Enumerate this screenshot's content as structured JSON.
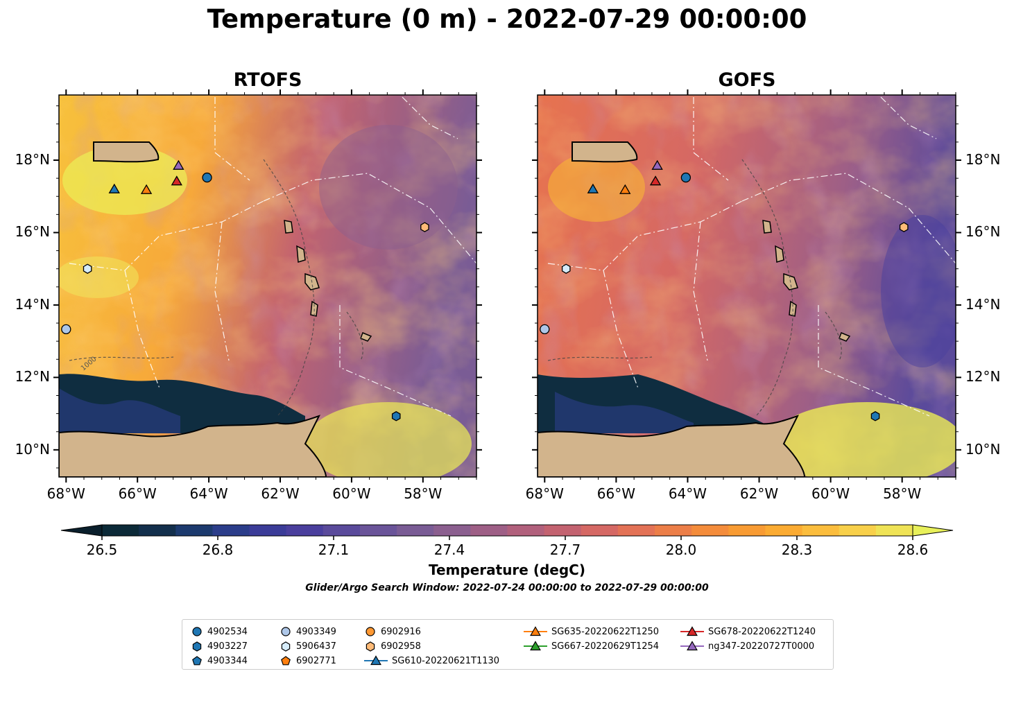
{
  "title": "Temperature (0 m) - 2022-07-29 00:00:00",
  "panels": [
    {
      "title": "RTOFS"
    },
    {
      "title": "GOFS"
    }
  ],
  "lon_ticks": [
    "68°W",
    "66°W",
    "64°W",
    "62°W",
    "60°W",
    "58°W"
  ],
  "lat_ticks": [
    "18°N",
    "16°N",
    "14°N",
    "12°N",
    "10°N"
  ],
  "colorbar": {
    "label": "Temperature (degC)",
    "min": 26.4,
    "max": 28.65,
    "ticks": [
      "26.5",
      "26.8",
      "27.1",
      "27.4",
      "27.7",
      "28.0",
      "28.3",
      "28.6"
    ],
    "extend": "both",
    "colors": [
      "#0c2a38",
      "#132f4c",
      "#1c3a6e",
      "#2b3d8a",
      "#3b3c98",
      "#4a3f9d",
      "#5a4a9b",
      "#6a5499",
      "#7a5c95",
      "#8b5f8f",
      "#9e5f86",
      "#b1607c",
      "#c36270",
      "#d56864",
      "#e37256",
      "#ec7e48",
      "#f48c3b",
      "#f89b33",
      "#fbab32",
      "#fbbd3d",
      "#f8d04a",
      "#efe356"
    ]
  },
  "search_window": "Glider/Argo Search Window: 2022-07-24 00:00:00 to 2022-07-29 00:00:00",
  "legend": {
    "items": [
      {
        "label": "4902534",
        "marker": "circle",
        "color": "#1f77b4"
      },
      {
        "label": "4903227",
        "marker": "hexagon",
        "color": "#1f77b4"
      },
      {
        "label": "4903344",
        "marker": "pentagon",
        "color": "#1f77b4"
      },
      {
        "label": "4903349",
        "marker": "circle",
        "color": "#aec7e8"
      },
      {
        "label": "5906437",
        "marker": "hexagon",
        "color": "#d6ecfa"
      },
      {
        "label": "6902771",
        "marker": "pentagon",
        "color": "#ff7f0e"
      },
      {
        "label": "6902916",
        "marker": "circle",
        "color": "#ff9933"
      },
      {
        "label": "6902958",
        "marker": "hexagon",
        "color": "#ffbb78"
      },
      {
        "label": "SG610-20220621T1130",
        "marker": "triangle-line",
        "color": "#1f77b4"
      },
      {
        "label": "SG635-20220622T1250",
        "marker": "triangle-line",
        "color": "#ff7f0e"
      },
      {
        "label": "SG667-20220629T1254",
        "marker": "triangle-line",
        "color": "#2ca02c"
      },
      {
        "label": "SG678-20220622T1240",
        "marker": "triangle-line",
        "color": "#d62728"
      },
      {
        "label": "ng347-20220727T0000",
        "marker": "triangle-line",
        "color": "#9467bd"
      }
    ]
  },
  "map_markers": [
    {
      "id": "4902534",
      "lon": -64.05,
      "lat": 17.52,
      "marker": "circle",
      "color": "#1f77b4"
    },
    {
      "id": "4903227",
      "lon": -58.75,
      "lat": 10.93,
      "marker": "hexagon",
      "color": "#1f77b4"
    },
    {
      "id": "4903349",
      "lon": -68.0,
      "lat": 13.33,
      "marker": "circle",
      "color": "#aec7e8"
    },
    {
      "id": "5906437",
      "lon": -67.4,
      "lat": 15.0,
      "marker": "hexagon",
      "color": "#d6ecfa"
    },
    {
      "id": "6902958",
      "lon": -57.95,
      "lat": 16.15,
      "marker": "hexagon",
      "color": "#ffbb78"
    },
    {
      "id": "SG610-20220621T1130",
      "lon": -66.65,
      "lat": 17.2,
      "marker": "triangle",
      "color": "#1f77b4"
    },
    {
      "id": "SG635-20220622T1250",
      "lon": -65.75,
      "lat": 17.18,
      "marker": "triangle",
      "color": "#ff7f0e"
    },
    {
      "id": "SG678-20220622T1240",
      "lon": -64.9,
      "lat": 17.42,
      "marker": "triangle",
      "color": "#d62728"
    },
    {
      "id": "ng347-20220727T0000",
      "lon": -64.85,
      "lat": 17.85,
      "marker": "triangle",
      "color": "#9467bd"
    }
  ],
  "bathymetry_contour_label": "1000",
  "land_color": "#d2b48c"
}
